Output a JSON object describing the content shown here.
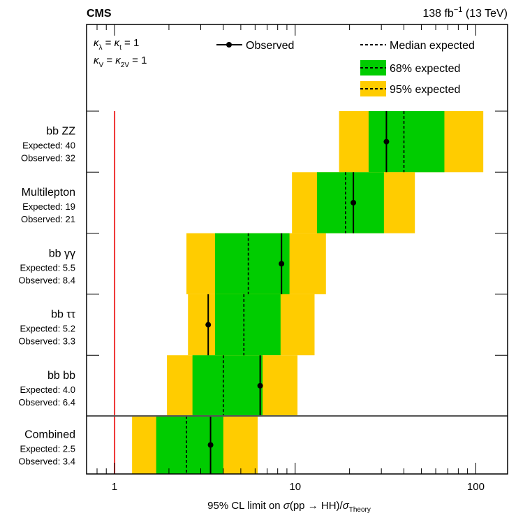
{
  "header": {
    "experiment": "CMS",
    "lumi_value": "138 fb",
    "lumi_exponent": "−1",
    "lumi_energy": " (13 TeV)"
  },
  "couplings": {
    "line1": {
      "k1": "κ",
      "s1": "λ",
      "eq1": " = ",
      "k2": "κ",
      "s2": "t",
      "eq2": " = 1"
    },
    "line2": {
      "k1": "κ",
      "s1": "V",
      "eq1": " = ",
      "k2": "κ",
      "s2": "2V",
      "eq2": " = 1"
    }
  },
  "legend": {
    "observed": "Observed",
    "median": "Median expected",
    "band68": "68% expected",
    "band95": "95% expected"
  },
  "colors": {
    "band68": "#00cc00",
    "band95": "#ffcc00",
    "theory_line": "#ee3333",
    "separator": "#555555"
  },
  "chart_data": {
    "type": "limit-plot",
    "x_scale": "log",
    "xlim": [
      0.7,
      150
    ],
    "xlabel": {
      "prefix": "95% CL limit on ",
      "sigma": "σ",
      "process": "(pp → HH)/",
      "sigma2": "σ",
      "sub": "Theory"
    },
    "x_ticks": [
      "1",
      "10",
      "100"
    ],
    "reference_line_x": 1,
    "expected_label": "Expected: ",
    "observed_label": "Observed: ",
    "channels": [
      {
        "name": "bb ZZ",
        "expected_text": "40",
        "observed_text": "32",
        "expected": 40,
        "observed": 32,
        "band68": [
          25.5,
          67
        ],
        "band95": [
          17.5,
          110
        ]
      },
      {
        "name": "Multilepton",
        "expected_text": "19",
        "observed_text": "21",
        "expected": 19,
        "observed": 21,
        "band68": [
          13.2,
          31
        ],
        "band95": [
          9.6,
          46
        ]
      },
      {
        "name": "bb γγ",
        "expected_text": "5.5",
        "observed_text": "8.4",
        "expected": 5.5,
        "observed": 8.4,
        "band68": [
          3.6,
          9.3
        ],
        "band95": [
          2.5,
          14.8
        ]
      },
      {
        "name": "bb ττ",
        "expected_text": "5.2",
        "observed_text": "3.3",
        "expected": 5.2,
        "observed": 3.3,
        "band68": [
          3.6,
          8.3
        ],
        "band95": [
          2.55,
          12.8
        ]
      },
      {
        "name": "bb bb",
        "expected_text": "4.0",
        "observed_text": "6.4",
        "expected": 4.0,
        "observed": 6.4,
        "band68": [
          2.7,
          6.6
        ],
        "band95": [
          1.95,
          10.3
        ]
      },
      {
        "name": "Combined",
        "expected_text": "2.5",
        "observed_text": "3.4",
        "expected": 2.5,
        "observed": 3.4,
        "band68": [
          1.7,
          4.0
        ],
        "band95": [
          1.25,
          6.2
        ]
      }
    ]
  }
}
